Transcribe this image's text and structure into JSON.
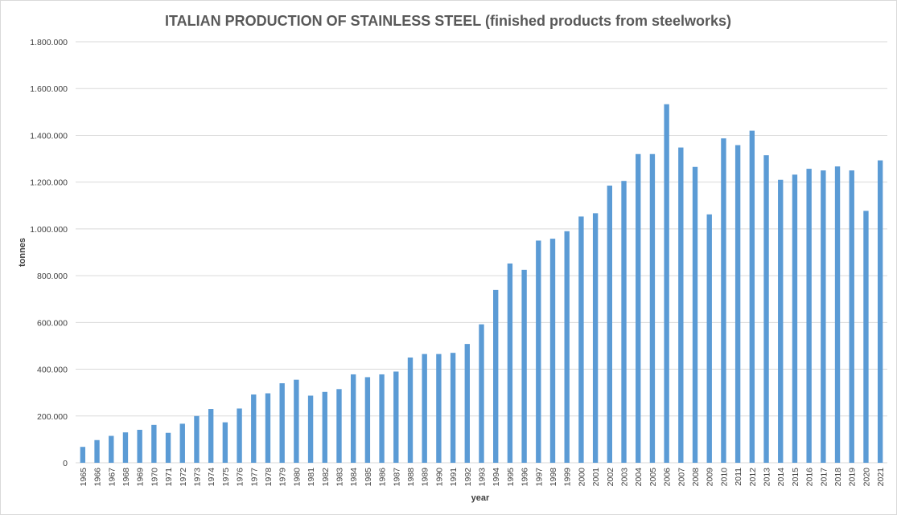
{
  "chart_data": {
    "type": "bar",
    "title": "ITALIAN PRODUCTION OF STAINLESS STEEL (finished products from steelworks)",
    "xlabel": "year",
    "ylabel": "tonnes",
    "ylim": [
      0,
      1800000
    ],
    "yticks": [
      {
        "value": 0,
        "label": "0"
      },
      {
        "value": 200000,
        "label": "200.000"
      },
      {
        "value": 400000,
        "label": "400.000"
      },
      {
        "value": 600000,
        "label": "600.000"
      },
      {
        "value": 800000,
        "label": "800.000"
      },
      {
        "value": 1000000,
        "label": "1.000.000"
      },
      {
        "value": 1200000,
        "label": "1.200.000"
      },
      {
        "value": 1400000,
        "label": "1.400.000"
      },
      {
        "value": 1600000,
        "label": "1.600.000"
      },
      {
        "value": 1800000,
        "label": "1.800.000"
      }
    ],
    "grid": true,
    "bar_color": "#5b9bd5",
    "categories": [
      "1965",
      "1966",
      "1967",
      "1968",
      "1969",
      "1970",
      "1971",
      "1972",
      "1973",
      "1974",
      "1975",
      "1976",
      "1977",
      "1978",
      "1979",
      "1980",
      "1981",
      "1982",
      "1983",
      "1984",
      "1985",
      "1986",
      "1987",
      "1988",
      "1989",
      "1990",
      "1991",
      "1992",
      "1993",
      "1994",
      "1995",
      "1996",
      "1997",
      "1998",
      "1999",
      "2000",
      "2001",
      "2002",
      "2003",
      "2004",
      "2005",
      "2006",
      "2007",
      "2008",
      "2009",
      "2010",
      "2011",
      "2012",
      "2013",
      "2014",
      "2015",
      "2016",
      "2017",
      "2018",
      "2019",
      "2020",
      "2021"
    ],
    "values": [
      68000,
      97000,
      115000,
      130000,
      141000,
      162000,
      128000,
      167000,
      200000,
      230000,
      173000,
      232000,
      292000,
      297000,
      340000,
      355000,
      287000,
      303000,
      315000,
      378000,
      366000,
      378000,
      390000,
      450000,
      465000,
      465000,
      470000,
      508000,
      592000,
      739000,
      852000,
      825000,
      950000,
      958000,
      990000,
      1053000,
      1067000,
      1185000,
      1205000,
      1320000,
      1320000,
      1533000,
      1348000,
      1265000,
      1062000,
      1387000,
      1358000,
      1420000,
      1315000,
      1210000,
      1232000,
      1257000,
      1250000,
      1267000,
      1250000,
      1077000,
      1293000
    ]
  }
}
